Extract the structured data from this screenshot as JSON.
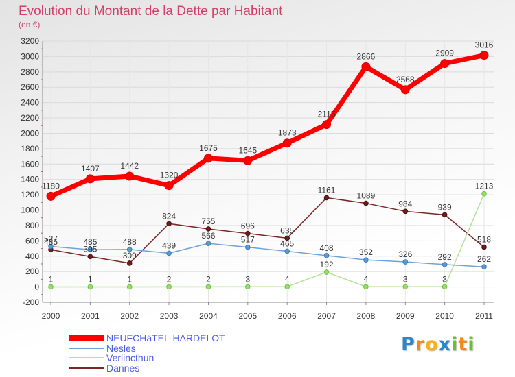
{
  "chart_data": {
    "type": "line",
    "title": "Evolution du Montant de la Dette par Habitant",
    "subtitle": "(en €)",
    "x": [
      "2000",
      "2001",
      "2002",
      "2003",
      "2004",
      "2005",
      "2006",
      "2007",
      "2008",
      "2009",
      "2010",
      "2011"
    ],
    "ylim": [
      -200,
      3200
    ],
    "yticks": [
      -200,
      0,
      200,
      400,
      600,
      800,
      1000,
      1200,
      1400,
      1600,
      1800,
      2000,
      2200,
      2400,
      2600,
      2800,
      3000,
      3200
    ],
    "grid": true,
    "legend_position": "bottom-left",
    "series": [
      {
        "name": "NEUFCHâTEL-HARDELOT",
        "color": "#ff0000",
        "marker_color": "#ff0000",
        "marker_stroke": "#e00000",
        "values": [
          1180,
          1407,
          1442,
          1320,
          1675,
          1645,
          1873,
          2115,
          2866,
          2568,
          2909,
          3016
        ]
      },
      {
        "name": "Nesles",
        "color": "#6fa3d8",
        "marker_color": "#5b9bd8",
        "marker_stroke": "#3a78b8",
        "values": [
          527,
          485,
          488,
          439,
          566,
          517,
          465,
          408,
          352,
          326,
          292,
          262
        ]
      },
      {
        "name": "Verlincthun",
        "color": "#b2e396",
        "marker_color": "#9ade6a",
        "marker_stroke": "#6fbf3f",
        "values": [
          1,
          1,
          1,
          2,
          2,
          3,
          4,
          192,
          4,
          3,
          3,
          1213
        ]
      },
      {
        "name": "Dannes",
        "color": "#7a2626",
        "marker_color": "#6f1c1c",
        "marker_stroke": "#4b0f0f",
        "values": [
          485,
          395,
          309,
          824,
          755,
          696,
          635,
          1161,
          1089,
          984,
          939,
          518
        ]
      }
    ]
  },
  "logo": {
    "letters": [
      "P",
      "r",
      "o",
      "x",
      "i",
      "t",
      "i"
    ],
    "colors": [
      "#2e86c8",
      "#f08a1c",
      "#f5b21b",
      "#2e86c8",
      "#6cbf2e",
      "#f08a1c",
      "#6cbf2e"
    ]
  }
}
